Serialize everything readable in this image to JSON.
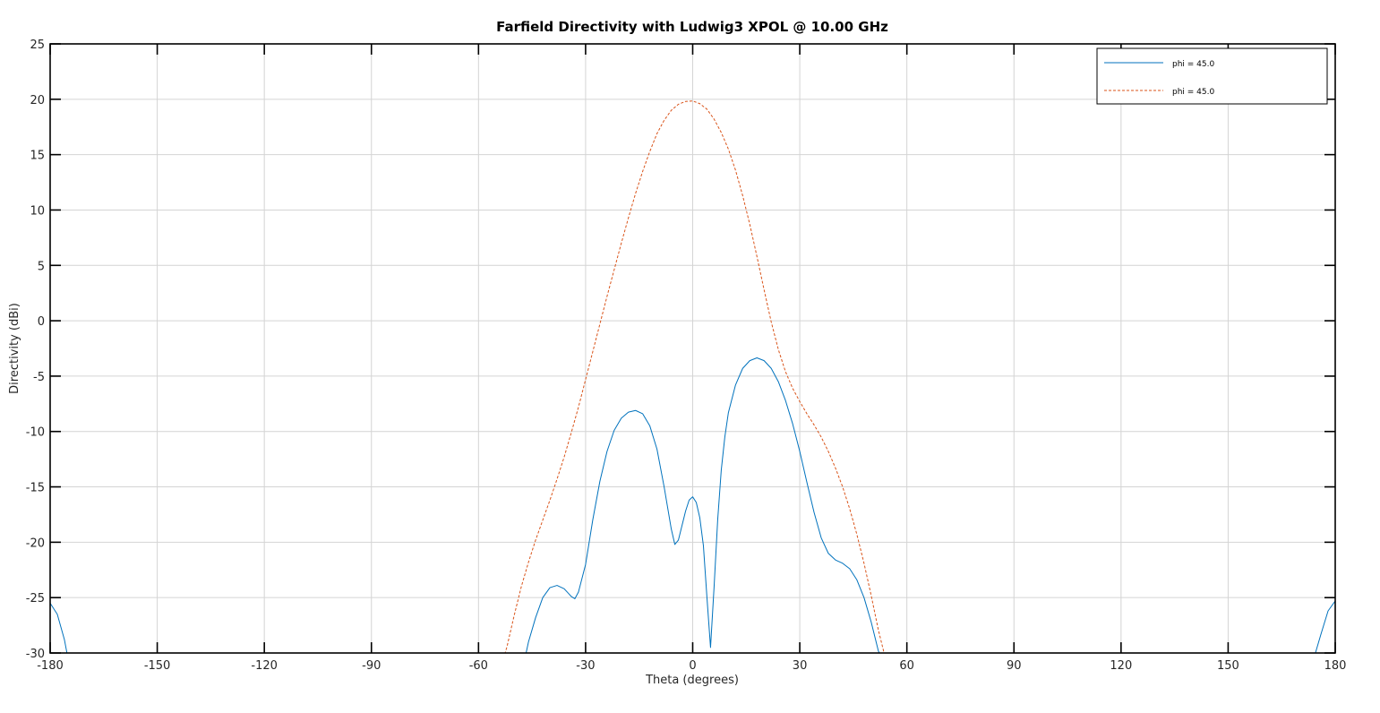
{
  "chart_data": {
    "type": "line",
    "title": "Farfield Directivity with Ludwig3 XPOL @ 10.00 GHz",
    "xlabel": "Theta (degrees)",
    "ylabel": "Directivity (dBi)",
    "xlim": [
      -180,
      180
    ],
    "ylim": [
      -30,
      25
    ],
    "xticks": [
      -180,
      -150,
      -120,
      -90,
      -60,
      -30,
      0,
      30,
      60,
      90,
      120,
      150,
      180
    ],
    "yticks": [
      -30,
      -25,
      -20,
      -15,
      -10,
      -5,
      0,
      5,
      10,
      15,
      20,
      25
    ],
    "grid": true,
    "legend_position": "top-right",
    "series": [
      {
        "name": "phi = 45.0",
        "color": "#0072BD",
        "style": "solid",
        "points": [
          [
            -180,
            -25.5
          ],
          [
            -178,
            -26.5
          ],
          [
            -176,
            -28.8
          ],
          [
            -175,
            -30.5
          ],
          [
            -47,
            -30.5
          ],
          [
            -46,
            -29.0
          ],
          [
            -44,
            -26.8
          ],
          [
            -42,
            -25.0
          ],
          [
            -40,
            -24.1
          ],
          [
            -38,
            -23.9
          ],
          [
            -36,
            -24.2
          ],
          [
            -34,
            -24.9
          ],
          [
            -33,
            -25.1
          ],
          [
            -32,
            -24.5
          ],
          [
            -30,
            -22.0
          ],
          [
            -28,
            -18.0
          ],
          [
            -26,
            -14.5
          ],
          [
            -24,
            -11.8
          ],
          [
            -22,
            -9.9
          ],
          [
            -20,
            -8.8
          ],
          [
            -18,
            -8.25
          ],
          [
            -16,
            -8.1
          ],
          [
            -14,
            -8.4
          ],
          [
            -12,
            -9.5
          ],
          [
            -10,
            -11.6
          ],
          [
            -8,
            -15.0
          ],
          [
            -6,
            -18.8
          ],
          [
            -5,
            -20.2
          ],
          [
            -4,
            -19.8
          ],
          [
            -2,
            -17.2
          ],
          [
            -1,
            -16.2
          ],
          [
            0,
            -15.9
          ],
          [
            1,
            -16.4
          ],
          [
            2,
            -17.8
          ],
          [
            3,
            -20.3
          ],
          [
            4,
            -25.0
          ],
          [
            5,
            -29.5
          ],
          [
            6,
            -24.0
          ],
          [
            7,
            -18.0
          ],
          [
            8,
            -13.5
          ],
          [
            9,
            -10.5
          ],
          [
            10,
            -8.3
          ],
          [
            12,
            -5.8
          ],
          [
            14,
            -4.3
          ],
          [
            16,
            -3.6
          ],
          [
            18,
            -3.35
          ],
          [
            20,
            -3.6
          ],
          [
            22,
            -4.3
          ],
          [
            24,
            -5.5
          ],
          [
            26,
            -7.2
          ],
          [
            28,
            -9.3
          ],
          [
            30,
            -11.8
          ],
          [
            32,
            -14.6
          ],
          [
            34,
            -17.3
          ],
          [
            36,
            -19.6
          ],
          [
            38,
            -21.0
          ],
          [
            40,
            -21.6
          ],
          [
            42,
            -21.9
          ],
          [
            44,
            -22.4
          ],
          [
            46,
            -23.4
          ],
          [
            48,
            -25.0
          ],
          [
            50,
            -27.2
          ],
          [
            52,
            -29.8
          ],
          [
            53,
            -30.5
          ],
          [
            174,
            -30.5
          ],
          [
            176,
            -28.3
          ],
          [
            178,
            -26.2
          ],
          [
            180,
            -25.3
          ]
        ]
      },
      {
        "name": "phi = 45.0",
        "color": "#D95319",
        "style": "dashed",
        "points": [
          [
            -53,
            -30.5
          ],
          [
            -52,
            -29.4
          ],
          [
            -50,
            -26.6
          ],
          [
            -48,
            -24.0
          ],
          [
            -46,
            -21.8
          ],
          [
            -44,
            -19.8
          ],
          [
            -42,
            -18.0
          ],
          [
            -40,
            -16.2
          ],
          [
            -38,
            -14.3
          ],
          [
            -36,
            -12.3
          ],
          [
            -34,
            -10.1
          ],
          [
            -32,
            -7.8
          ],
          [
            -30,
            -5.3
          ],
          [
            -28,
            -2.8
          ],
          [
            -26,
            -0.3
          ],
          [
            -24,
            2.2
          ],
          [
            -22,
            4.6
          ],
          [
            -20,
            7.0
          ],
          [
            -18,
            9.3
          ],
          [
            -16,
            11.5
          ],
          [
            -14,
            13.5
          ],
          [
            -12,
            15.3
          ],
          [
            -10,
            16.9
          ],
          [
            -8,
            18.1
          ],
          [
            -6,
            19.0
          ],
          [
            -4,
            19.55
          ],
          [
            -2,
            19.8
          ],
          [
            0,
            19.85
          ],
          [
            2,
            19.6
          ],
          [
            4,
            19.1
          ],
          [
            6,
            18.2
          ],
          [
            8,
            17.0
          ],
          [
            10,
            15.5
          ],
          [
            12,
            13.6
          ],
          [
            14,
            11.3
          ],
          [
            16,
            8.7
          ],
          [
            18,
            5.8
          ],
          [
            20,
            2.8
          ],
          [
            22,
            -0.1
          ],
          [
            24,
            -2.6
          ],
          [
            26,
            -4.6
          ],
          [
            28,
            -6.1
          ],
          [
            30,
            -7.3
          ],
          [
            32,
            -8.4
          ],
          [
            34,
            -9.4
          ],
          [
            36,
            -10.5
          ],
          [
            38,
            -11.8
          ],
          [
            40,
            -13.3
          ],
          [
            42,
            -15.0
          ],
          [
            44,
            -17.0
          ],
          [
            46,
            -19.3
          ],
          [
            48,
            -21.9
          ],
          [
            50,
            -24.8
          ],
          [
            52,
            -27.9
          ],
          [
            54,
            -30.5
          ]
        ]
      }
    ]
  }
}
